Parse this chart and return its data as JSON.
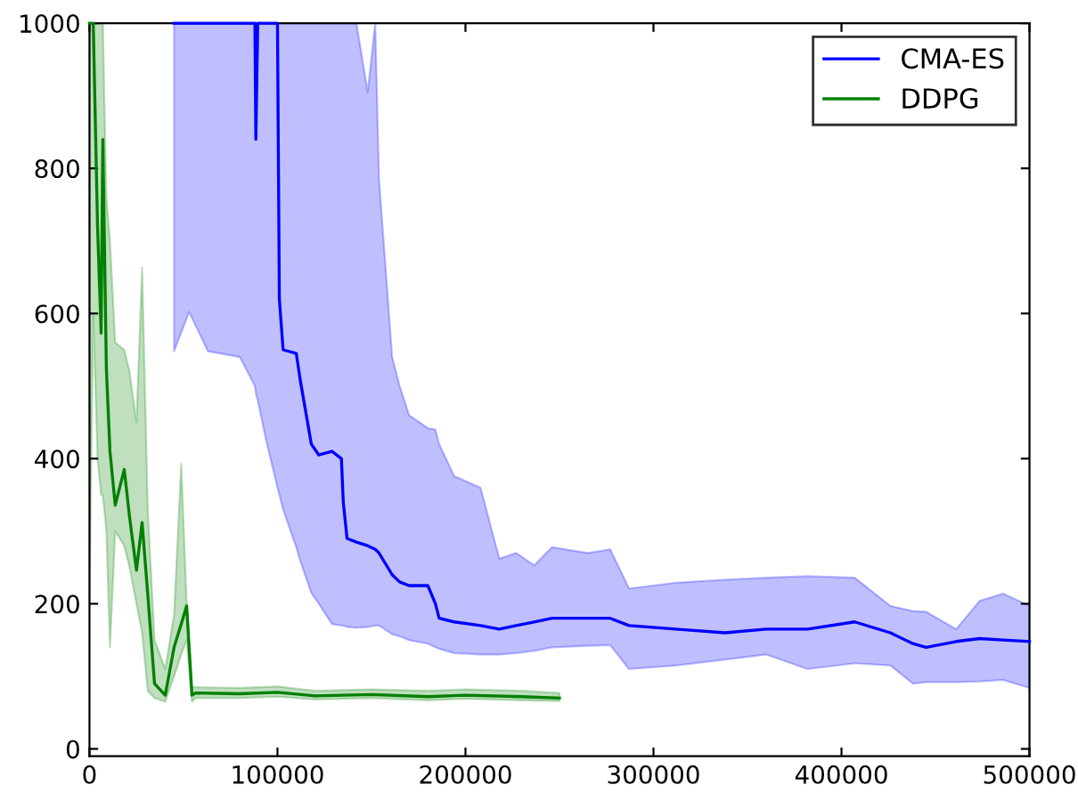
{
  "chart_data": {
    "type": "line",
    "xlim": [
      0,
      500000
    ],
    "ylim": [
      -10,
      1000
    ],
    "xticks": [
      0,
      100000,
      200000,
      300000,
      400000,
      500000
    ],
    "yticks": [
      0,
      200,
      400,
      600,
      800,
      1000
    ],
    "grid": false,
    "legend": "top right",
    "marker": "none",
    "line_style": "solid",
    "series": [
      {
        "name": "CMA-ES",
        "color": "#0000ff",
        "x": [
          45000,
          53000,
          63000,
          80000,
          88000,
          88500,
          89500,
          94000,
          100000,
          101000,
          103000,
          110000,
          112000,
          118000,
          122000,
          129000,
          134000,
          135000,
          137000,
          142000,
          148000,
          152000,
          154000,
          161000,
          165000,
          170000,
          180000,
          184000,
          186000,
          194000,
          208000,
          218000,
          227000,
          236500,
          246000,
          265000,
          277000,
          287000,
          312000,
          338000,
          360000,
          382000,
          407000,
          426000,
          438000,
          445000,
          461000,
          473500,
          486000,
          500000
        ],
        "values": [
          1000,
          1000,
          1000,
          1000,
          1000,
          840,
          1000,
          1000,
          1000,
          620,
          550,
          545,
          510,
          420,
          405,
          410,
          400,
          340,
          290,
          285,
          280,
          275,
          270,
          240,
          230,
          225,
          225,
          200,
          180,
          175,
          170,
          165,
          170,
          175,
          180,
          180,
          180,
          170,
          165,
          160,
          165,
          165,
          175,
          160,
          145,
          140,
          148,
          152,
          150,
          148
        ],
        "lower": [
          548,
          602,
          548,
          540,
          500,
          490,
          480,
          425,
          360,
          350,
          330,
          278,
          260,
          215,
          200,
          172,
          170,
          170,
          168,
          167,
          168,
          170,
          170,
          158,
          155,
          150,
          145,
          140,
          138,
          132,
          130,
          130,
          132,
          135,
          140,
          142,
          143,
          110,
          115,
          123,
          130,
          110,
          118,
          115,
          90,
          92,
          92,
          93,
          95,
          84
        ],
        "upper": [
          1000,
          1000,
          1000,
          1000,
          1000,
          1000,
          1000,
          1000,
          1000,
          1000,
          1000,
          1000,
          1000,
          1000,
          1000,
          1000,
          1000,
          1000,
          1000,
          1000,
          905,
          1000,
          786,
          540,
          500,
          460,
          442,
          440,
          420,
          376,
          360,
          262,
          270,
          253,
          278,
          270,
          275,
          221,
          229,
          233,
          236,
          238,
          236,
          197,
          190,
          189,
          165,
          204,
          214,
          197
        ]
      },
      {
        "name": "DDPG",
        "color": "#008000",
        "x": [
          0,
          2000,
          4300,
          6200,
          7100,
          9000,
          10900,
          13700,
          18500,
          21300,
          25000,
          28000,
          31000,
          34600,
          40300,
          45000,
          48800,
          51700,
          54500,
          56400,
          80000,
          100000,
          120000,
          150000,
          180000,
          200000,
          230000,
          250000
        ],
        "values": [
          1000,
          1000,
          720,
          573,
          840,
          523,
          410,
          336,
          385,
          320,
          246,
          312,
          213,
          90,
          74,
          140,
          172,
          197,
          74,
          77,
          76,
          78,
          73,
          75,
          72,
          74,
          72,
          70
        ],
        "lower": [
          200,
          600,
          400,
          350,
          350,
          300,
          140,
          300,
          280,
          250,
          200,
          160,
          80,
          70,
          65,
          100,
          130,
          150,
          65,
          70,
          70,
          72,
          68,
          70,
          67,
          69,
          67,
          66
        ],
        "upper": [
          1000,
          1000,
          1000,
          1000,
          1000,
          760,
          700,
          560,
          550,
          520,
          450,
          663,
          330,
          150,
          110,
          185,
          393,
          200,
          85,
          85,
          84,
          86,
          80,
          82,
          80,
          82,
          80,
          77
        ]
      }
    ]
  }
}
